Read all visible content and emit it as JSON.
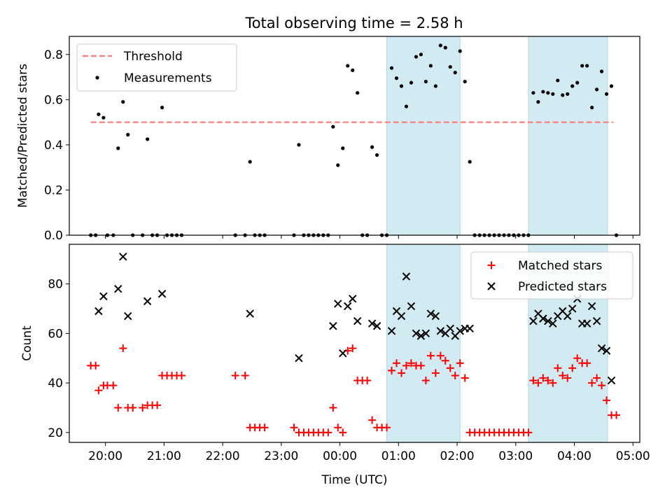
{
  "title": "Total observing time = 2.58 h",
  "colors": {
    "measurement": "#000000",
    "matched": "#ff0000",
    "predicted": "#000000",
    "threshold": "#ff7f7f",
    "shade": "#add8e6"
  },
  "chart_data": [
    {
      "type": "scatter",
      "panel": "top",
      "ylabel": "Matched/Predicted stars",
      "ylim": [
        0,
        0.88
      ],
      "yticks": [
        "0.0",
        "0.2",
        "0.4",
        "0.6",
        "0.8"
      ],
      "xlim": [
        "19:23",
        "05:07"
      ],
      "legend_position": "upper left",
      "threshold": {
        "name": "Threshold",
        "value": 0.5,
        "x_range": [
          "19:45",
          "04:40"
        ]
      },
      "shaded_intervals": [
        [
          "00:48",
          "02:03"
        ],
        [
          "03:13",
          "04:34"
        ]
      ],
      "series": [
        {
          "name": "Measurements",
          "points": [
            [
              "19:45",
              0.0
            ],
            [
              "19:50",
              0.0
            ],
            [
              "19:53",
              0.535
            ],
            [
              "19:58",
              0.52
            ],
            [
              "20:02",
              0.0
            ],
            [
              "20:08",
              0.0
            ],
            [
              "20:13",
              0.385
            ],
            [
              "20:18",
              0.59
            ],
            [
              "20:23",
              0.445
            ],
            [
              "20:28",
              0.0
            ],
            [
              "20:38",
              0.0
            ],
            [
              "20:43",
              0.425
            ],
            [
              "20:48",
              0.0
            ],
            [
              "20:53",
              0.0
            ],
            [
              "20:58",
              0.565
            ],
            [
              "21:03",
              0.0
            ],
            [
              "21:08",
              0.0
            ],
            [
              "21:13",
              0.0
            ],
            [
              "21:18",
              0.0
            ],
            [
              "22:13",
              0.0
            ],
            [
              "22:23",
              0.0
            ],
            [
              "22:28",
              0.325
            ],
            [
              "22:33",
              0.0
            ],
            [
              "22:38",
              0.0
            ],
            [
              "22:43",
              0.0
            ],
            [
              "23:13",
              0.0
            ],
            [
              "23:18",
              0.4
            ],
            [
              "23:23",
              0.0
            ],
            [
              "23:28",
              0.0
            ],
            [
              "23:33",
              0.0
            ],
            [
              "23:38",
              0.0
            ],
            [
              "23:43",
              0.0
            ],
            [
              "23:48",
              0.0
            ],
            [
              "23:53",
              0.48
            ],
            [
              "23:58",
              0.31
            ],
            [
              "00:03",
              0.385
            ],
            [
              "00:08",
              0.75
            ],
            [
              "00:13",
              0.73
            ],
            [
              "00:18",
              0.63
            ],
            [
              "00:23",
              0.0
            ],
            [
              "00:28",
              0.0
            ],
            [
              "00:33",
              0.39
            ],
            [
              "00:38",
              0.355
            ],
            [
              "00:43",
              0.0
            ],
            [
              "00:48",
              0.0
            ],
            [
              "00:53",
              0.74
            ],
            [
              "00:58",
              0.695
            ],
            [
              "01:03",
              0.66
            ],
            [
              "01:08",
              0.57
            ],
            [
              "01:13",
              0.675
            ],
            [
              "01:18",
              0.79
            ],
            [
              "01:23",
              0.8
            ],
            [
              "01:28",
              0.68
            ],
            [
              "01:33",
              0.75
            ],
            [
              "01:38",
              0.66
            ],
            [
              "01:43",
              0.84
            ],
            [
              "01:48",
              0.83
            ],
            [
              "01:53",
              0.745
            ],
            [
              "01:58",
              0.72
            ],
            [
              "02:03",
              0.815
            ],
            [
              "02:08",
              0.68
            ],
            [
              "02:13",
              0.325
            ],
            [
              "02:18",
              0.0
            ],
            [
              "02:23",
              0.0
            ],
            [
              "02:28",
              0.0
            ],
            [
              "02:33",
              0.0
            ],
            [
              "02:38",
              0.0
            ],
            [
              "02:43",
              0.0
            ],
            [
              "02:48",
              0.0
            ],
            [
              "02:53",
              0.0
            ],
            [
              "02:58",
              0.0
            ],
            [
              "03:03",
              0.0
            ],
            [
              "03:08",
              0.0
            ],
            [
              "03:13",
              0.0
            ],
            [
              "03:18",
              0.63
            ],
            [
              "03:23",
              0.59
            ],
            [
              "03:28",
              0.635
            ],
            [
              "03:33",
              0.63
            ],
            [
              "03:38",
              0.625
            ],
            [
              "03:43",
              0.685
            ],
            [
              "03:48",
              0.62
            ],
            [
              "03:53",
              0.625
            ],
            [
              "03:58",
              0.66
            ],
            [
              "04:03",
              0.675
            ],
            [
              "04:08",
              0.75
            ],
            [
              "04:13",
              0.75
            ],
            [
              "04:18",
              0.565
            ],
            [
              "04:23",
              0.645
            ],
            [
              "04:28",
              0.725
            ],
            [
              "04:33",
              0.625
            ],
            [
              "04:38",
              0.66
            ],
            [
              "04:43",
              0.0
            ]
          ]
        }
      ]
    },
    {
      "type": "scatter",
      "panel": "bottom",
      "xlabel": "Time (UTC)",
      "ylabel": "Count",
      "ylim": [
        16,
        96
      ],
      "yticks": [
        "20",
        "40",
        "60",
        "80"
      ],
      "xlim": [
        "19:23",
        "05:07"
      ],
      "xticks": [
        "20:00",
        "21:00",
        "22:00",
        "23:00",
        "00:00",
        "01:00",
        "02:00",
        "03:00",
        "04:00",
        "05:00"
      ],
      "legend_position": "upper right",
      "shaded_intervals": [
        [
          "00:48",
          "02:03"
        ],
        [
          "03:13",
          "04:34"
        ]
      ],
      "series": [
        {
          "name": "Matched stars",
          "marker": "+",
          "points": [
            [
              "19:45",
              47
            ],
            [
              "19:50",
              47
            ],
            [
              "19:53",
              37
            ],
            [
              "19:58",
              39
            ],
            [
              "20:02",
              39
            ],
            [
              "20:08",
              39
            ],
            [
              "20:13",
              30
            ],
            [
              "20:18",
              54
            ],
            [
              "20:23",
              30
            ],
            [
              "20:28",
              30
            ],
            [
              "20:38",
              30
            ],
            [
              "20:43",
              31
            ],
            [
              "20:48",
              31
            ],
            [
              "20:53",
              31
            ],
            [
              "20:58",
              43
            ],
            [
              "21:03",
              43
            ],
            [
              "21:08",
              43
            ],
            [
              "21:13",
              43
            ],
            [
              "21:18",
              43
            ],
            [
              "22:13",
              43
            ],
            [
              "22:23",
              43
            ],
            [
              "22:28",
              22
            ],
            [
              "22:33",
              22
            ],
            [
              "22:38",
              22
            ],
            [
              "22:43",
              22
            ],
            [
              "23:13",
              22
            ],
            [
              "23:18",
              20
            ],
            [
              "23:23",
              20
            ],
            [
              "23:28",
              20
            ],
            [
              "23:33",
              20
            ],
            [
              "23:38",
              20
            ],
            [
              "23:43",
              20
            ],
            [
              "23:48",
              20
            ],
            [
              "23:53",
              30
            ],
            [
              "23:58",
              22
            ],
            [
              "00:03",
              20
            ],
            [
              "00:08",
              53
            ],
            [
              "00:13",
              54
            ],
            [
              "00:18",
              41
            ],
            [
              "00:23",
              41
            ],
            [
              "00:28",
              41
            ],
            [
              "00:33",
              25
            ],
            [
              "00:38",
              22
            ],
            [
              "00:43",
              22
            ],
            [
              "00:48",
              22
            ],
            [
              "00:53",
              45
            ],
            [
              "00:58",
              48
            ],
            [
              "01:03",
              44
            ],
            [
              "01:08",
              47
            ],
            [
              "01:13",
              48
            ],
            [
              "01:18",
              47
            ],
            [
              "01:23",
              47
            ],
            [
              "01:28",
              41
            ],
            [
              "01:33",
              51
            ],
            [
              "01:38",
              44
            ],
            [
              "01:43",
              51
            ],
            [
              "01:48",
              49
            ],
            [
              "01:53",
              46
            ],
            [
              "01:58",
              43
            ],
            [
              "02:03",
              48
            ],
            [
              "02:08",
              42
            ],
            [
              "02:13",
              20
            ],
            [
              "02:18",
              20
            ],
            [
              "02:23",
              20
            ],
            [
              "02:28",
              20
            ],
            [
              "02:33",
              20
            ],
            [
              "02:38",
              20
            ],
            [
              "02:43",
              20
            ],
            [
              "02:48",
              20
            ],
            [
              "02:53",
              20
            ],
            [
              "02:58",
              20
            ],
            [
              "03:03",
              20
            ],
            [
              "03:08",
              20
            ],
            [
              "03:13",
              20
            ],
            [
              "03:18",
              41
            ],
            [
              "03:23",
              40
            ],
            [
              "03:28",
              42
            ],
            [
              "03:33",
              41
            ],
            [
              "03:38",
              40
            ],
            [
              "03:43",
              46
            ],
            [
              "03:48",
              43
            ],
            [
              "03:53",
              42
            ],
            [
              "03:58",
              46
            ],
            [
              "04:03",
              50
            ],
            [
              "04:08",
              48
            ],
            [
              "04:13",
              48
            ],
            [
              "04:18",
              40
            ],
            [
              "04:23",
              42
            ],
            [
              "04:28",
              39
            ],
            [
              "04:33",
              33
            ],
            [
              "04:38",
              27
            ],
            [
              "04:43",
              27
            ]
          ]
        },
        {
          "name": "Predicted stars",
          "marker": "x",
          "points": [
            [
              "19:53",
              69
            ],
            [
              "19:58",
              75
            ],
            [
              "20:13",
              78
            ],
            [
              "20:18",
              91
            ],
            [
              "20:23",
              67
            ],
            [
              "20:43",
              73
            ],
            [
              "20:58",
              76
            ],
            [
              "22:28",
              68
            ],
            [
              "23:18",
              50
            ],
            [
              "23:53",
              63
            ],
            [
              "23:58",
              72
            ],
            [
              "00:03",
              52
            ],
            [
              "00:08",
              71
            ],
            [
              "00:13",
              74
            ],
            [
              "00:18",
              65
            ],
            [
              "00:33",
              64
            ],
            [
              "00:38",
              63
            ],
            [
              "00:53",
              61
            ],
            [
              "00:58",
              69
            ],
            [
              "01:03",
              67
            ],
            [
              "01:08",
              83
            ],
            [
              "01:13",
              71
            ],
            [
              "01:18",
              60
            ],
            [
              "01:23",
              59
            ],
            [
              "01:28",
              60
            ],
            [
              "01:33",
              68
            ],
            [
              "01:38",
              67
            ],
            [
              "01:43",
              61
            ],
            [
              "01:48",
              60
            ],
            [
              "01:53",
              62
            ],
            [
              "01:58",
              59
            ],
            [
              "02:03",
              61
            ],
            [
              "02:08",
              62
            ],
            [
              "02:13",
              62
            ],
            [
              "03:18",
              65
            ],
            [
              "03:23",
              68
            ],
            [
              "03:28",
              66
            ],
            [
              "03:33",
              65
            ],
            [
              "03:38",
              64
            ],
            [
              "03:43",
              67
            ],
            [
              "03:48",
              69
            ],
            [
              "03:53",
              67
            ],
            [
              "03:58",
              70
            ],
            [
              "04:03",
              74
            ],
            [
              "04:08",
              64
            ],
            [
              "04:13",
              64
            ],
            [
              "04:18",
              71
            ],
            [
              "04:23",
              65
            ],
            [
              "04:28",
              54
            ],
            [
              "04:33",
              53
            ],
            [
              "04:38",
              41
            ]
          ]
        }
      ]
    }
  ]
}
